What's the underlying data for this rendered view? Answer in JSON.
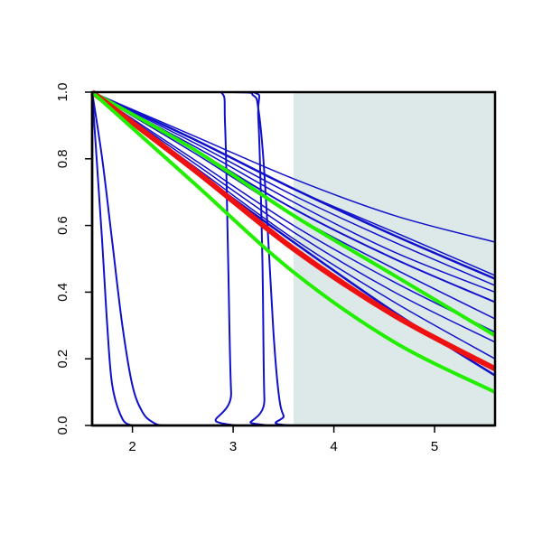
{
  "chart_data": {
    "type": "line",
    "title": "",
    "xlabel": "",
    "ylabel": "",
    "xlim": [
      1.6,
      5.6
    ],
    "ylim": [
      0.0,
      1.0
    ],
    "x_ticks": [
      "2",
      "3",
      "4",
      "5"
    ],
    "y_ticks": [
      "0.0",
      "0.2",
      "0.4",
      "0.6",
      "0.8",
      "1.0"
    ],
    "grid": false,
    "legend": "none",
    "shaded_region": {
      "x": [
        3.6,
        5.6
      ],
      "y": [
        0.0,
        1.0
      ],
      "color": "#dde9e9"
    },
    "series": [
      {
        "color": "#1111cc",
        "width": 2,
        "x": [
          1.6,
          1.7,
          1.75,
          1.8,
          1.9,
          2.0
        ],
        "y": [
          1.0,
          0.55,
          0.3,
          0.12,
          0.02,
          0.0
        ]
      },
      {
        "color": "#1111cc",
        "width": 2,
        "x": [
          1.6,
          1.7,
          1.8,
          1.9,
          2.0,
          2.1,
          2.2,
          2.3,
          2.5
        ],
        "y": [
          1.0,
          0.8,
          0.55,
          0.3,
          0.12,
          0.04,
          0.01,
          0.0,
          0.0
        ]
      },
      {
        "color": "#1111cc",
        "width": 2,
        "x": [
          1.6,
          2.6,
          2.88,
          2.92,
          2.95,
          2.98,
          3.03,
          5.6
        ],
        "y": [
          1.0,
          1.0,
          1.0,
          0.9,
          0.5,
          0.1,
          0.0,
          0.0
        ]
      },
      {
        "color": "#1111cc",
        "width": 2,
        "x": [
          1.6,
          2.6,
          3.2,
          3.25,
          3.29,
          3.31,
          3.35,
          5.6
        ],
        "y": [
          1.0,
          1.0,
          1.0,
          0.92,
          0.5,
          0.08,
          0.0,
          0.0
        ]
      },
      {
        "color": "#1111cc",
        "width": 2,
        "x": [
          1.6,
          3.0,
          3.2,
          3.25,
          3.3,
          3.35,
          3.4,
          3.45,
          3.5,
          3.6,
          5.6
        ],
        "y": [
          1.0,
          1.0,
          0.99,
          0.95,
          0.8,
          0.55,
          0.28,
          0.1,
          0.03,
          0.0,
          0.0
        ]
      },
      {
        "color": "#1111cc",
        "width": 1.5,
        "x": [
          1.6,
          2.6,
          3.6,
          4.6,
          5.6
        ],
        "y": [
          1.0,
          0.87,
          0.74,
          0.63,
          0.55
        ]
      },
      {
        "color": "#1111cc",
        "width": 1.5,
        "x": [
          1.6,
          2.6,
          3.6,
          4.6,
          5.6
        ],
        "y": [
          1.0,
          0.86,
          0.71,
          0.58,
          0.45
        ]
      },
      {
        "color": "#1111cc",
        "width": 2.5,
        "x": [
          1.6,
          2.6,
          3.6,
          4.6,
          5.6
        ],
        "y": [
          1.0,
          0.86,
          0.71,
          0.57,
          0.44
        ]
      },
      {
        "color": "#1111cc",
        "width": 1.5,
        "x": [
          1.6,
          2.6,
          3.6,
          4.6,
          5.6
        ],
        "y": [
          1.0,
          0.85,
          0.69,
          0.55,
          0.42
        ]
      },
      {
        "color": "#1111cc",
        "width": 1.5,
        "x": [
          1.6,
          2.6,
          3.6,
          4.6,
          5.6
        ],
        "y": [
          1.0,
          0.84,
          0.67,
          0.52,
          0.4
        ]
      },
      {
        "color": "#1111cc",
        "width": 2,
        "x": [
          1.6,
          2.6,
          3.6,
          4.6,
          5.6
        ],
        "y": [
          1.0,
          0.83,
          0.65,
          0.5,
          0.37
        ]
      },
      {
        "color": "#1111cc",
        "width": 1.5,
        "x": [
          1.6,
          2.6,
          3.6,
          4.6,
          5.6
        ],
        "y": [
          1.0,
          0.82,
          0.63,
          0.47,
          0.32
        ]
      },
      {
        "color": "#1111cc",
        "width": 1.5,
        "x": [
          1.6,
          2.6,
          3.6,
          4.6,
          5.6
        ],
        "y": [
          1.0,
          0.8,
          0.6,
          0.43,
          0.28
        ]
      },
      {
        "color": "#1111cc",
        "width": 1.5,
        "x": [
          1.6,
          2.6,
          3.6,
          4.6,
          5.6
        ],
        "y": [
          1.0,
          0.79,
          0.58,
          0.4,
          0.25
        ]
      },
      {
        "color": "#1111cc",
        "width": 2.5,
        "x": [
          1.6,
          2.6,
          3.6,
          4.6,
          5.6
        ],
        "y": [
          1.0,
          0.77,
          0.55,
          0.34,
          0.15
        ]
      },
      {
        "color": "#1111cc",
        "width": 1.5,
        "x": [
          1.6,
          2.6,
          3.6,
          4.6,
          5.6
        ],
        "y": [
          1.0,
          0.78,
          0.56,
          0.37,
          0.2
        ]
      },
      {
        "color": "#22ee00",
        "width": 4,
        "x": [
          1.6,
          2.6,
          3.6,
          4.6,
          5.6
        ],
        "y": [
          1.0,
          0.83,
          0.63,
          0.45,
          0.27
        ]
      },
      {
        "color": "#ee1111",
        "width": 6,
        "x": [
          1.6,
          2.6,
          3.6,
          4.6,
          5.6
        ],
        "y": [
          1.0,
          0.77,
          0.53,
          0.33,
          0.17
        ]
      },
      {
        "color": "#22ee00",
        "width": 4,
        "x": [
          1.6,
          2.6,
          3.6,
          4.6,
          5.6
        ],
        "y": [
          1.0,
          0.73,
          0.46,
          0.25,
          0.1
        ]
      }
    ]
  }
}
